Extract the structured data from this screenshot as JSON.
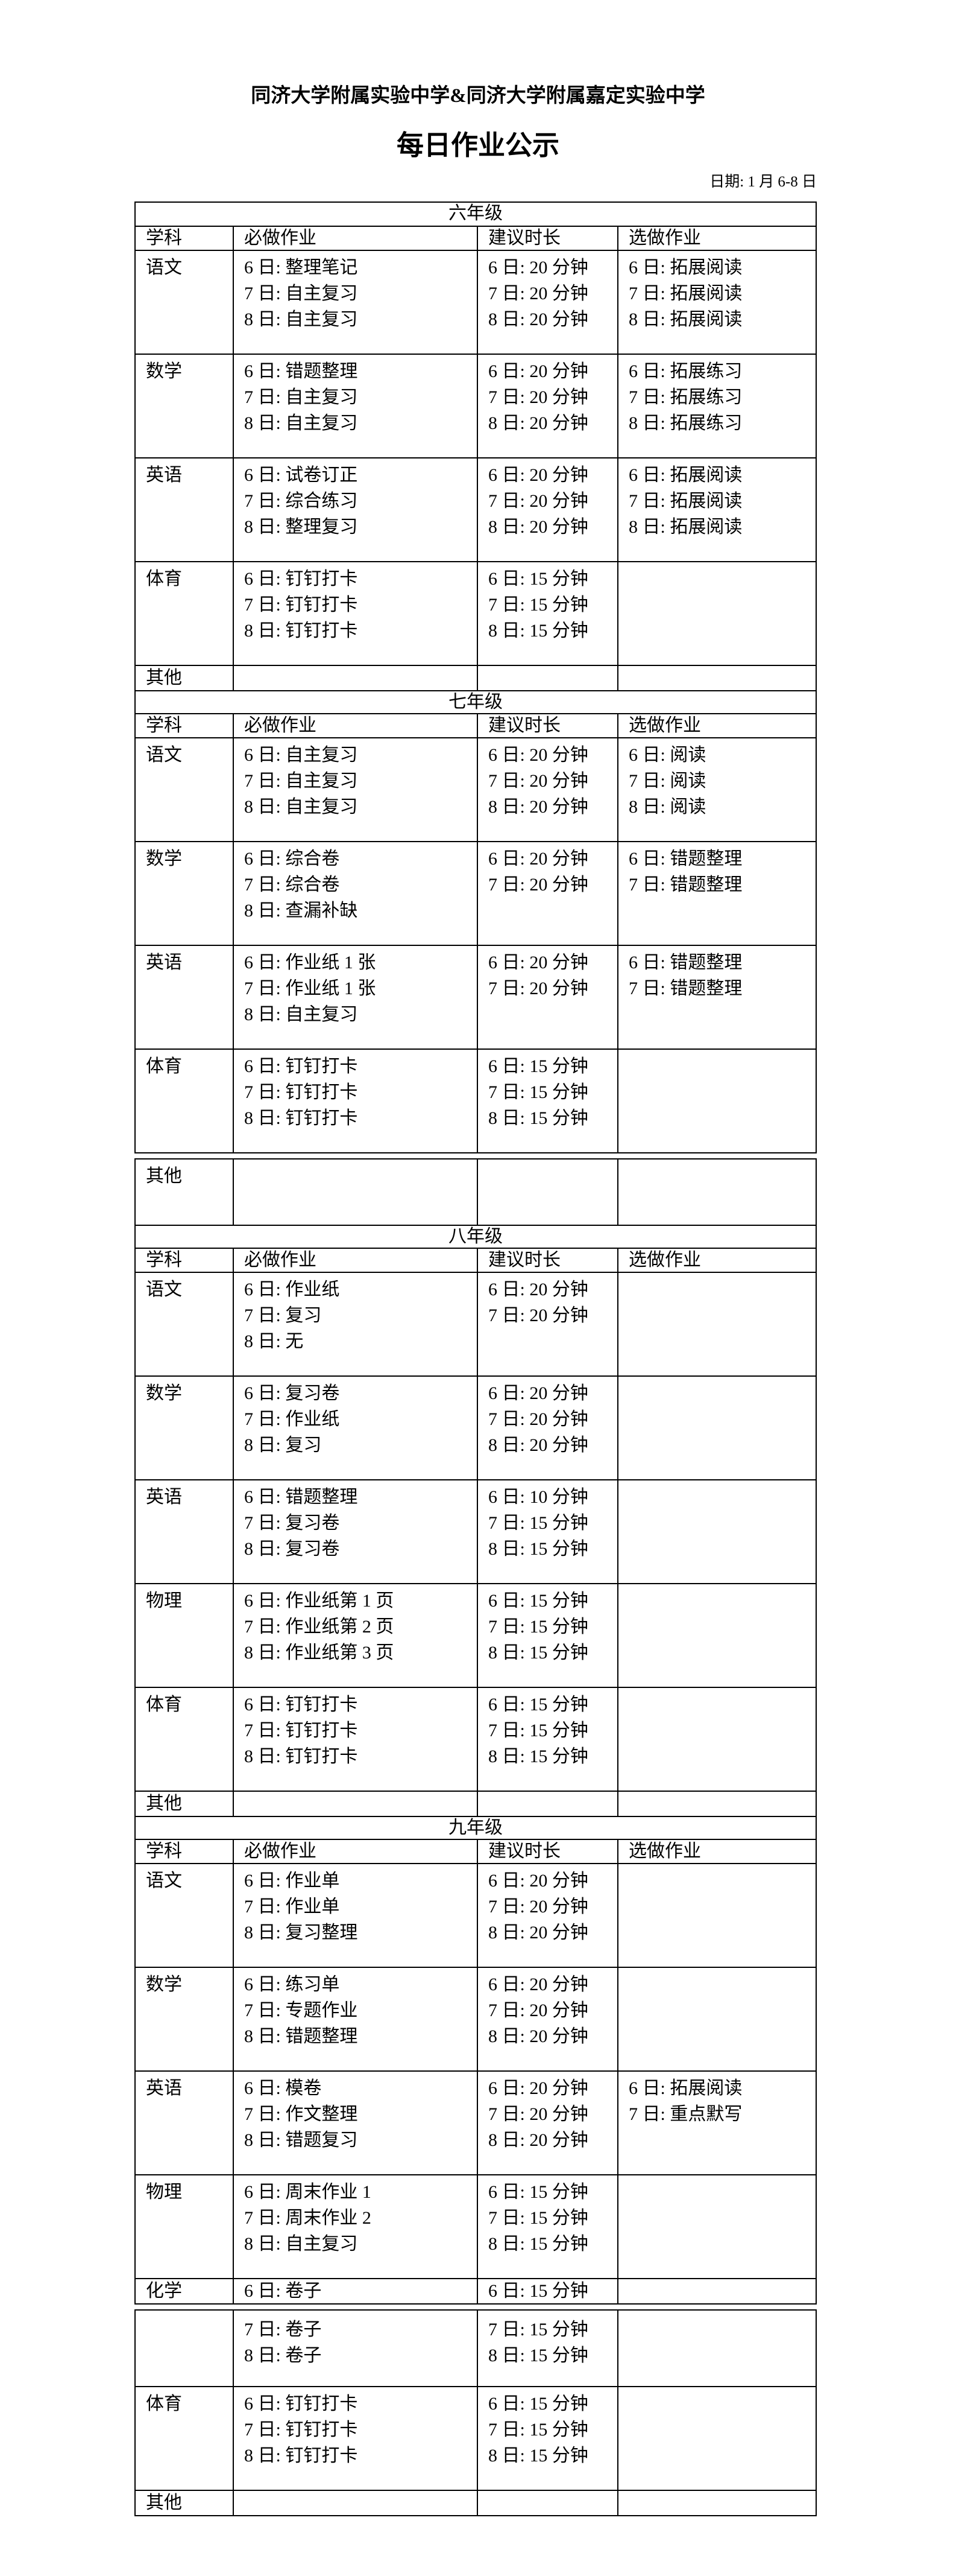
{
  "header": {
    "school_title": "同济大学附属实验中学&同济大学附属嘉定实验中学",
    "doc_title": "每日作业公示",
    "date_line": "日期: 1 月 6-8 日"
  },
  "table": {
    "columns": [
      "学科",
      "必做作业",
      "建议时长",
      "选做作业"
    ],
    "grades": [
      {
        "name": "六年级",
        "rows": [
          {
            "subject": "语文",
            "required": [
              "6 日: 整理笔记",
              "7 日: 自主复习",
              "8 日: 自主复习"
            ],
            "duration": [
              "6 日: 20 分钟",
              "7 日: 20 分钟",
              "8 日: 20 分钟"
            ],
            "optional": [
              "6 日: 拓展阅读",
              "7 日: 拓展阅读",
              "8 日: 拓展阅读"
            ]
          },
          {
            "subject": "数学",
            "required": [
              "6 日: 错题整理",
              "7 日: 自主复习",
              "8 日: 自主复习"
            ],
            "duration": [
              "6 日: 20 分钟",
              "7 日: 20 分钟",
              "8 日: 20 分钟"
            ],
            "optional": [
              "6 日: 拓展练习",
              "7 日: 拓展练习",
              "8 日: 拓展练习"
            ]
          },
          {
            "subject": "英语",
            "required": [
              "6 日: 试卷订正",
              "7 日: 综合练习",
              "8 日: 整理复习"
            ],
            "duration": [
              "6 日: 20 分钟",
              "7 日: 20 分钟",
              "8 日: 20 分钟"
            ],
            "optional": [
              "6 日: 拓展阅读",
              "7 日: 拓展阅读",
              "8 日: 拓展阅读"
            ]
          },
          {
            "subject": "体育",
            "required": [
              "6 日: 钉钉打卡",
              "7 日: 钉钉打卡",
              "8 日: 钉钉打卡"
            ],
            "duration": [
              "6 日: 15 分钟",
              "7 日: 15 分钟",
              "8 日: 15 分钟"
            ],
            "optional": []
          },
          {
            "subject": "其他",
            "required": [],
            "duration": [],
            "optional": []
          }
        ]
      },
      {
        "name": "七年级",
        "rows": [
          {
            "subject": "语文",
            "required": [
              "6 日: 自主复习",
              "7 日: 自主复习",
              "8 日: 自主复习"
            ],
            "duration": [
              "6 日: 20 分钟",
              "7 日: 20 分钟",
              "8 日: 20 分钟"
            ],
            "optional": [
              "6 日: 阅读",
              "7 日: 阅读",
              "8 日: 阅读"
            ]
          },
          {
            "subject": "数学",
            "required": [
              "6 日: 综合卷",
              "7 日: 综合卷",
              "8 日: 查漏补缺"
            ],
            "duration": [
              "6 日: 20 分钟",
              "7 日: 20 分钟"
            ],
            "optional": [
              "6 日: 错题整理",
              "7 日: 错题整理"
            ]
          },
          {
            "subject": "英语",
            "required": [
              "6 日: 作业纸 1 张",
              "7 日: 作业纸 1 张",
              "8 日: 自主复习"
            ],
            "duration": [
              "6 日: 20 分钟",
              "7 日: 20 分钟"
            ],
            "optional": [
              "6 日: 错题整理",
              "7 日: 错题整理"
            ]
          },
          {
            "subject": "体育",
            "required": [
              "6 日: 钉钉打卡",
              "7 日: 钉钉打卡",
              "8 日: 钉钉打卡"
            ],
            "duration": [
              "6 日: 15 分钟",
              "7 日: 15 分钟",
              "8 日: 15 分钟"
            ],
            "optional": []
          },
          {
            "subject": "其他",
            "required": [],
            "duration": [],
            "optional": []
          }
        ]
      },
      {
        "name": "八年级",
        "rows": [
          {
            "subject": "语文",
            "required": [
              "6 日: 作业纸",
              "7 日: 复习",
              "8 日: 无"
            ],
            "duration": [
              "6 日: 20 分钟",
              "7 日: 20 分钟"
            ],
            "optional": []
          },
          {
            "subject": "数学",
            "required": [
              "6 日: 复习卷",
              "7 日: 作业纸",
              "8 日: 复习"
            ],
            "duration": [
              "6 日: 20 分钟",
              "7 日: 20 分钟",
              "8 日: 20 分钟"
            ],
            "optional": []
          },
          {
            "subject": "英语",
            "required": [
              "6 日: 错题整理",
              "7 日: 复习卷",
              "8 日: 复习卷"
            ],
            "duration": [
              "6 日: 10 分钟",
              "7 日: 15 分钟",
              "8 日: 15 分钟"
            ],
            "optional": []
          },
          {
            "subject": "物理",
            "required": [
              "6 日: 作业纸第 1 页",
              "7 日: 作业纸第 2 页",
              "8 日: 作业纸第 3 页"
            ],
            "duration": [
              "6 日: 15 分钟",
              "7 日: 15 分钟",
              "8 日: 15 分钟"
            ],
            "optional": []
          },
          {
            "subject": "体育",
            "required": [
              "6 日: 钉钉打卡",
              "7 日: 钉钉打卡",
              "8 日: 钉钉打卡"
            ],
            "duration": [
              "6 日: 15 分钟",
              "7 日: 15 分钟",
              "8 日: 15 分钟"
            ],
            "optional": []
          },
          {
            "subject": "其他",
            "required": [],
            "duration": [],
            "optional": []
          }
        ]
      },
      {
        "name": "九年级",
        "rows": [
          {
            "subject": "语文",
            "required": [
              "6 日: 作业单",
              "7 日: 作业单",
              "8 日: 复习整理"
            ],
            "duration": [
              "6 日: 20 分钟",
              "7 日: 20 分钟",
              "8 日: 20 分钟"
            ],
            "optional": []
          },
          {
            "subject": "数学",
            "required": [
              "6 日: 练习单",
              "7 日: 专题作业",
              "8 日: 错题整理"
            ],
            "duration": [
              "6 日: 20 分钟",
              "7 日: 20 分钟",
              "8 日: 20 分钟"
            ],
            "optional": []
          },
          {
            "subject": "英语",
            "required": [
              "6 日: 模卷",
              "7 日: 作文整理",
              "8 日: 错题复习"
            ],
            "duration": [
              "6 日: 20 分钟",
              "7 日: 20 分钟",
              "8 日: 20 分钟"
            ],
            "optional": [
              "6 日: 拓展阅读",
              "7 日: 重点默写"
            ]
          },
          {
            "subject": "物理",
            "required": [
              "6 日: 周末作业 1",
              "7 日: 周末作业 2",
              "8 日: 自主复习"
            ],
            "duration": [
              "6 日: 15 分钟",
              "7 日: 15 分钟",
              "8 日: 15 分钟"
            ],
            "optional": []
          },
          {
            "subject": "化学",
            "required": [
              "6 日: 卷子"
            ],
            "duration": [
              "6 日: 15 分钟"
            ],
            "optional": []
          },
          {
            "subject": "",
            "required": [
              "7 日: 卷子",
              "8 日: 卷子"
            ],
            "duration": [
              "7 日: 15 分钟",
              "8 日: 15 分钟"
            ],
            "optional": []
          },
          {
            "subject": "体育",
            "required": [
              "6 日: 钉钉打卡",
              "7 日: 钉钉打卡",
              "8 日: 钉钉打卡"
            ],
            "duration": [
              "6 日: 15 分钟",
              "7 日: 15 分钟",
              "8 日: 15 分钟"
            ],
            "optional": []
          },
          {
            "subject": "其他",
            "required": [],
            "duration": [],
            "optional": []
          }
        ]
      }
    ]
  }
}
